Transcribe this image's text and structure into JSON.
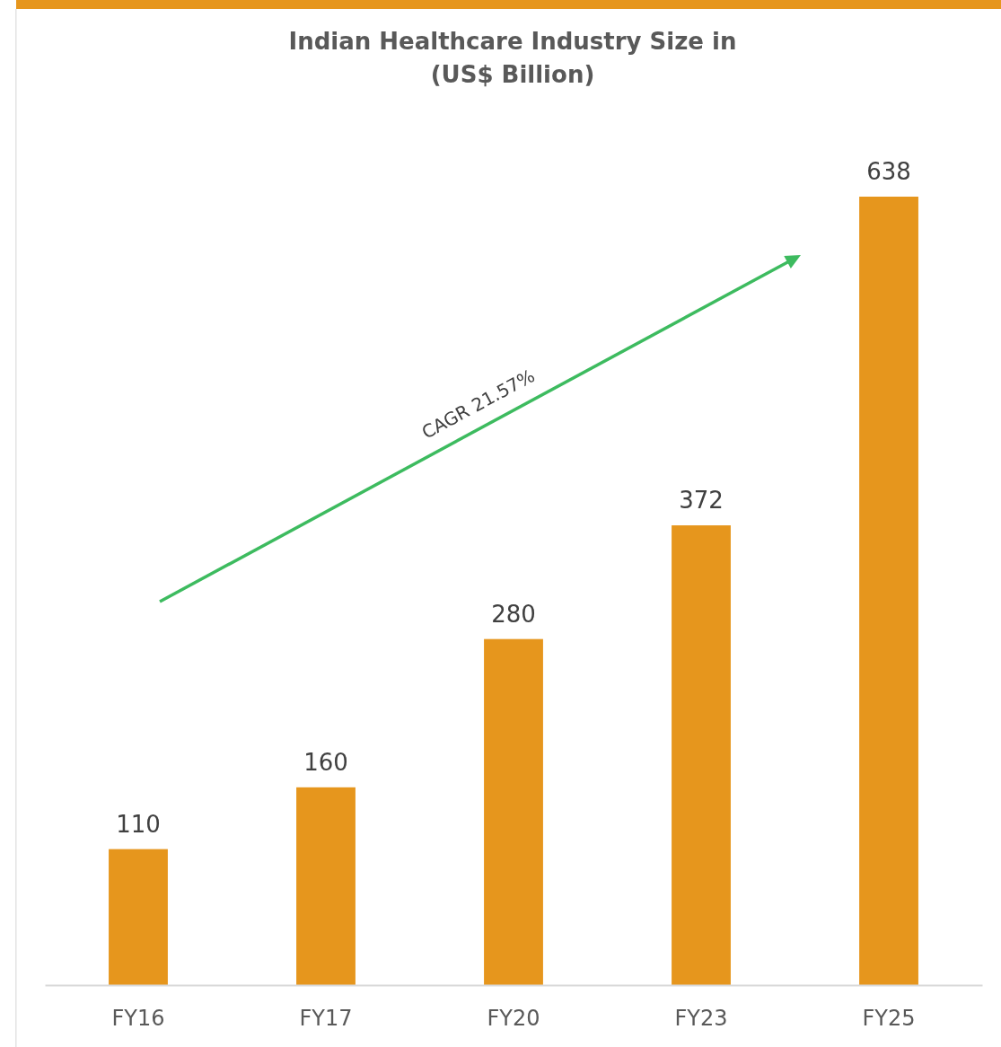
{
  "chart_data": {
    "type": "bar",
    "title": "Indian Healthcare Industry Size in\n(US$ Billion)",
    "categories": [
      "FY16",
      "FY17",
      "FY20",
      "FY23",
      "FY25"
    ],
    "values": [
      110,
      160,
      280,
      372,
      638
    ],
    "color": "#e6961d",
    "data_labels": true,
    "annotations": [
      "CAGR 21.57%"
    ]
  }
}
